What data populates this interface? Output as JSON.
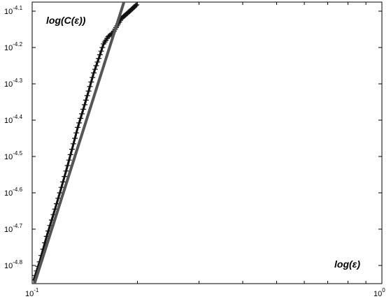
{
  "chart_data": {
    "type": "line",
    "xscale": "log",
    "yscale": "log",
    "xlabel": "log(ε)",
    "ylabel": "log(C(ε))",
    "xlim": [
      0.1,
      1
    ],
    "ylim": [
      -4.85,
      -4.075
    ],
    "x_tick_labels": [
      {
        "value": 0.1,
        "base": "10",
        "exp": "-1"
      },
      {
        "value": 1,
        "base": "10",
        "exp": "0"
      }
    ],
    "y_tick_labels": [
      {
        "value": -4.1,
        "base": "10",
        "exp": "-4.1"
      },
      {
        "value": -4.2,
        "base": "10",
        "exp": "-4.2"
      },
      {
        "value": -4.3,
        "base": "10",
        "exp": "-4.3"
      },
      {
        "value": -4.4,
        "base": "10",
        "exp": "-4.4"
      },
      {
        "value": -4.5,
        "base": "10",
        "exp": "-4.5"
      },
      {
        "value": -4.6,
        "base": "10",
        "exp": "-4.6"
      },
      {
        "value": -4.7,
        "base": "10",
        "exp": "-4.7"
      },
      {
        "value": -4.8,
        "base": "10",
        "exp": "-4.8"
      }
    ],
    "grid": false,
    "series": [
      {
        "style": "markers-plus",
        "color": "#111111",
        "x": [
          0.101,
          0.105,
          0.11,
          0.115,
          0.12,
          0.125,
          0.13,
          0.135,
          0.14,
          0.145,
          0.15,
          0.155,
          0.16,
          0.165,
          0.17,
          0.175,
          0.18,
          0.185,
          0.19,
          0.195,
          0.2
        ],
        "y": [
          -4.84,
          -4.79,
          -4.72,
          -4.66,
          -4.6,
          -4.54,
          -4.48,
          -4.42,
          -4.37,
          -4.32,
          -4.27,
          -4.23,
          -4.19,
          -4.17,
          -4.16,
          -4.14,
          -4.12,
          -4.11,
          -4.1,
          -4.09,
          -4.08
        ]
      },
      {
        "style": "fit-line",
        "color": "#555555",
        "x": [
          0.1,
          0.183
        ],
        "y": [
          -4.87,
          -4.075
        ]
      }
    ]
  }
}
